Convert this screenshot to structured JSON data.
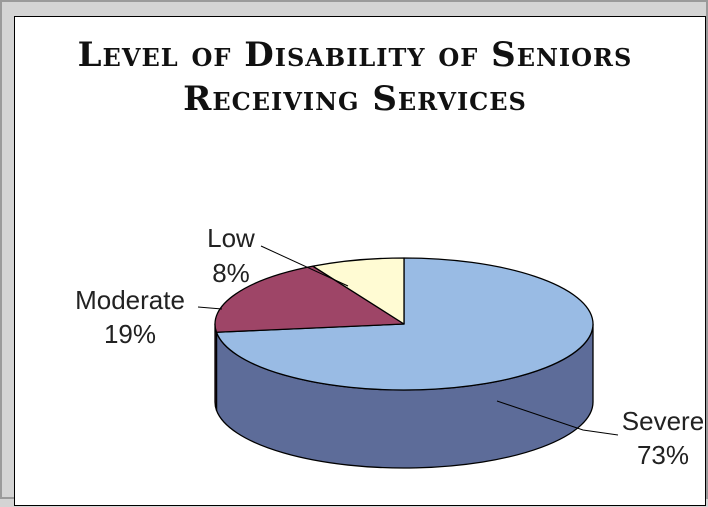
{
  "chart_data": {
    "type": "pie",
    "title": "Level of Disability of Seniors Receiving Services",
    "title_lines": [
      "Level of Disability of Seniors",
      "Receiving Services"
    ],
    "categories": [
      "Severe",
      "Moderate",
      "Low"
    ],
    "values": [
      73,
      19,
      8
    ],
    "value_labels": [
      "73%",
      "19%",
      "8%"
    ],
    "colors": {
      "Severe": {
        "top": "#99BBE4",
        "side": "#5D6C99"
      },
      "Moderate": {
        "top": "#9E4567",
        "side": "#6E2C48"
      },
      "Low": {
        "top": "#FFFBD3",
        "side": "#C9C39A"
      }
    },
    "style": "3d",
    "legend": "none"
  }
}
